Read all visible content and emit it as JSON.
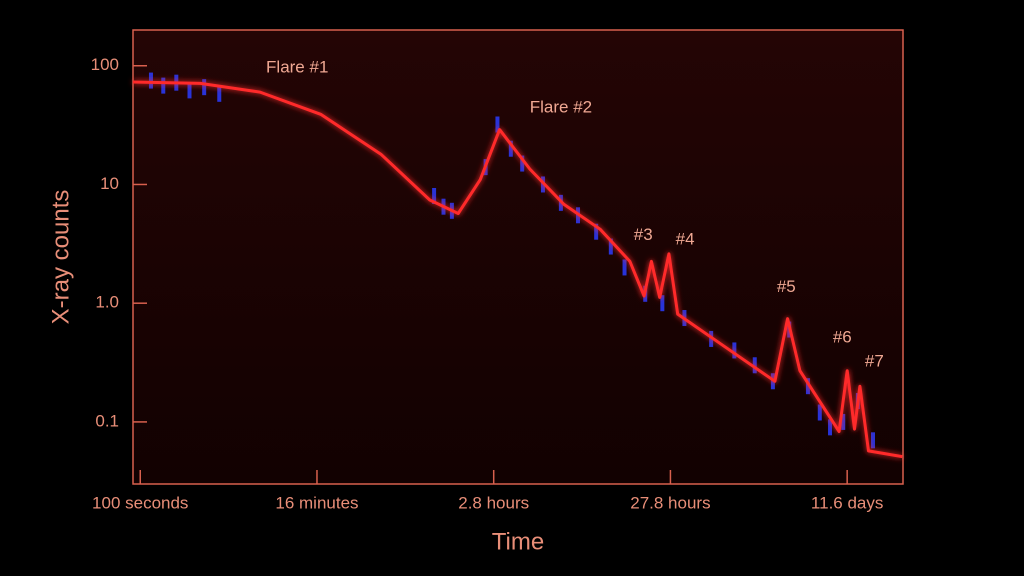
{
  "chart_data": {
    "type": "line",
    "xlabel": "Time",
    "ylabel": "X-ray counts",
    "xscale": "log",
    "yscale": "log",
    "xlim": [
      91,
      2070000
    ],
    "ylim": [
      0.03,
      200
    ],
    "xticks": [
      {
        "value": 100,
        "label": "100 seconds"
      },
      {
        "value": 1000,
        "label": "16 minutes"
      },
      {
        "value": 10000,
        "label": "2.8 hours"
      },
      {
        "value": 100000,
        "label": "27.8 hours"
      },
      {
        "value": 1000000,
        "label": "11.6 days"
      }
    ],
    "yticks": [
      100,
      10,
      {
        "value": 1,
        "label": "1.0"
      },
      0.1
    ],
    "series": [
      {
        "style": "points",
        "color": "#2a3cff",
        "x": [
          115,
          135,
          160,
          190,
          230,
          280,
          4600,
          5200,
          5800,
          9000,
          10500,
          12500,
          14500,
          19000,
          24000,
          30000,
          38000,
          46000,
          55000,
          72000,
          90000,
          120000,
          170000,
          230000,
          300000,
          380000,
          470000,
          600000,
          700000,
          800000,
          950000,
          1150000,
          1400000
        ],
        "values": [
          75,
          68,
          72,
          62,
          66,
          58,
          8,
          6.5,
          6,
          14,
          32,
          20,
          15,
          10,
          7,
          5.5,
          4,
          3,
          2,
          1.2,
          1.0,
          0.75,
          0.5,
          0.4,
          0.3,
          0.22,
          0.6,
          0.2,
          0.12,
          0.09,
          0.1,
          0.15,
          0.07
        ]
      },
      {
        "style": "line",
        "color": "#ff2a2a",
        "x": [
          91,
          219,
          476,
          1050,
          2300,
          4350,
          6300,
          8400,
          10800,
          16000,
          25000,
          40000,
          59000,
          71000,
          78000,
          87000,
          98000,
          110000,
          190000,
          390000,
          460000,
          540000,
          900000,
          1000000,
          1100000,
          1180000,
          1320000,
          2050000
        ],
        "values": [
          73,
          71,
          60,
          39,
          18,
          7.4,
          5.7,
          11,
          29,
          13.5,
          6.8,
          4.2,
          2.25,
          1.15,
          2.25,
          1.12,
          2.6,
          0.81,
          0.46,
          0.22,
          0.74,
          0.27,
          0.083,
          0.27,
          0.087,
          0.2,
          0.057,
          0.051
        ]
      }
    ],
    "annotations": [
      {
        "text": "Flare #1",
        "x": 515,
        "y": 96
      },
      {
        "text": "Flare #2",
        "x": 16000,
        "y": 44
      },
      {
        "text": "#3",
        "x": 62000,
        "y": 3.7
      },
      {
        "text": "#4",
        "x": 107000,
        "y": 3.4
      },
      {
        "text": "#5",
        "x": 400000,
        "y": 1.35
      },
      {
        "text": "#6",
        "x": 830000,
        "y": 0.51
      },
      {
        "text": "#7",
        "x": 1260000,
        "y": 0.32
      }
    ]
  }
}
